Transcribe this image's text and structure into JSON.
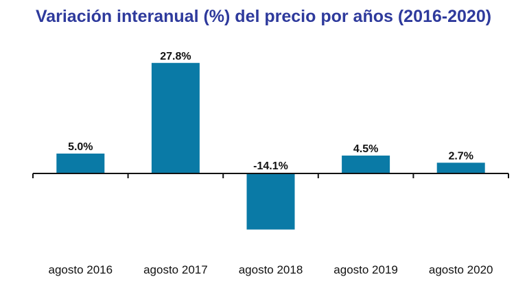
{
  "chart_data": {
    "type": "bar",
    "title": "Variación interanual (%) del precio por años (2016-2020)",
    "categories": [
      "agosto 2016",
      "agosto 2017",
      "agosto 2018",
      "agosto 2019",
      "agosto 2020"
    ],
    "values": [
      5.0,
      27.8,
      -14.1,
      4.5,
      2.7
    ],
    "value_labels": [
      "5.0%",
      "27.8%",
      "-14.1%",
      "4.5%",
      "2.7%"
    ],
    "xlabel": "",
    "ylabel": "",
    "ylim": [
      -15,
      30
    ],
    "grid": false,
    "legend": "none",
    "colors": {
      "bar": "#0a7aa6",
      "title": "#2e3a9c",
      "axis": "#111111"
    }
  }
}
